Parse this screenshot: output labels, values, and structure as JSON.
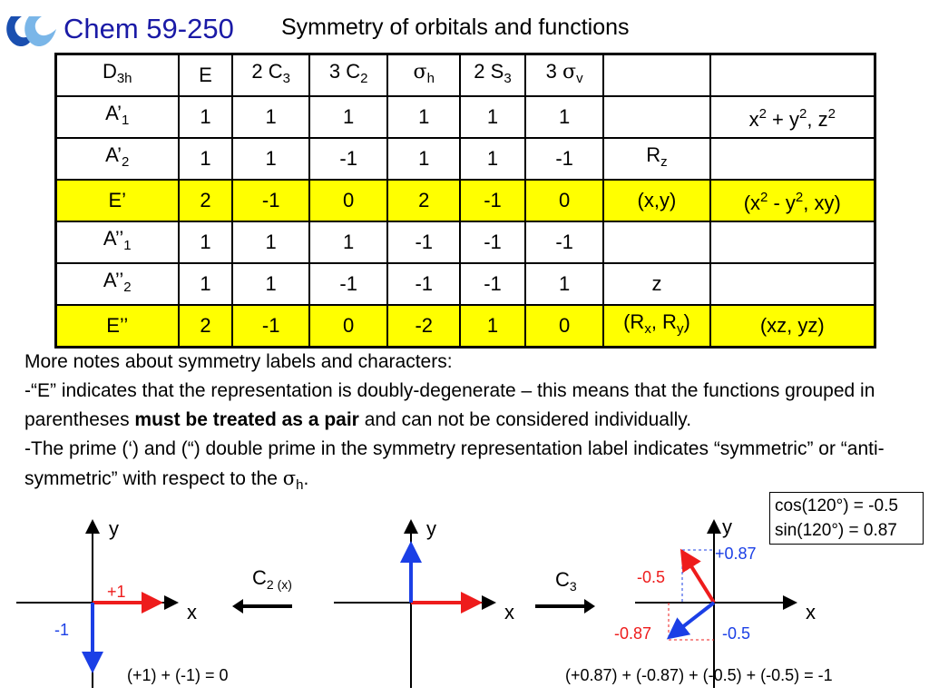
{
  "header": {
    "course": "Chem 59-250",
    "title": "Symmetry of orbitals and functions"
  },
  "character_table": {
    "point_group": {
      "base": "D",
      "sub": "3h"
    },
    "columns": [
      {
        "pre": "",
        "base": "E",
        "sub": ""
      },
      {
        "pre": "2 ",
        "base": "C",
        "sub": "3"
      },
      {
        "pre": "3 ",
        "base": "C",
        "sub": "2"
      },
      {
        "pre": "",
        "base": "σ",
        "sub": "h",
        "greek": true
      },
      {
        "pre": "2 ",
        "base": "S",
        "sub": "3"
      },
      {
        "pre": "3 ",
        "base": "σ",
        "sub": "v",
        "greek": true
      }
    ],
    "rows": [
      {
        "label": "A’",
        "sub": "1",
        "chars": [
          "1",
          "1",
          "1",
          "1",
          "1",
          "1"
        ],
        "linear": "",
        "quadratic": "x² + y², z²",
        "highlight": false
      },
      {
        "label": "A’",
        "sub": "2",
        "chars": [
          "1",
          "1",
          "-1",
          "1",
          "1",
          "-1"
        ],
        "linear": "Rz",
        "quadratic": "",
        "highlight": false
      },
      {
        "label": "E’",
        "sub": "",
        "chars": [
          "2",
          "-1",
          "0",
          "2",
          "-1",
          "0"
        ],
        "linear": "(x,y)",
        "quadratic": "(x² - y², xy)",
        "highlight": true
      },
      {
        "label": "A’’",
        "sub": "1",
        "chars": [
          "1",
          "1",
          "1",
          "-1",
          "-1",
          "-1"
        ],
        "linear": "",
        "quadratic": "",
        "highlight": false
      },
      {
        "label": "A’’",
        "sub": "2",
        "chars": [
          "1",
          "1",
          "-1",
          "-1",
          "-1",
          "1"
        ],
        "linear": "z",
        "quadratic": "",
        "highlight": false
      },
      {
        "label": "E’’",
        "sub": "",
        "chars": [
          "2",
          "-1",
          "0",
          "-2",
          "1",
          "0"
        ],
        "linear": "(Rx, Ry)",
        "quadratic": "(xz, yz)",
        "highlight": true
      }
    ]
  },
  "notes": {
    "heading": "More notes about symmetry labels and characters:",
    "p1_start": "-“E” indicates that the representation is doubly-degenerate – this means that the functions grouped in parentheses ",
    "p1_bold": "must be treated as a pair",
    "p1_end": " and can not be considered individually.",
    "p2_start": "-The prime (‘) and (“) double prime in the symmetry representation label indicates “symmetric” or “anti-symmetric” with respect to the ",
    "p2_sigma": "σ",
    "p2_sub": "h",
    "p2_end": "."
  },
  "trig_box": {
    "cos": "cos(120°) = -0.5",
    "sin": "sin(120°) = 0.87"
  },
  "diagrams": {
    "axis_x": "x",
    "axis_y": "y",
    "d1_plus": "+1",
    "d1_minus": "-1",
    "d1_sum": "(+1) + (-1) = 0",
    "op1": {
      "base": "C",
      "sub": "2 (x)"
    },
    "op2": {
      "base": "C",
      "sub": "3"
    },
    "d3_labels": {
      "plus087": "+0.87",
      "minus05_left": "-0.5",
      "minus087": "-0.87",
      "minus05_bottom": "-0.5"
    },
    "d3_sum": "(+0.87) + (-0.87) + (-0.5) + (-0.5) = -1",
    "colors": {
      "red": "#ee1c1c",
      "blue": "#1b3fe6"
    }
  }
}
